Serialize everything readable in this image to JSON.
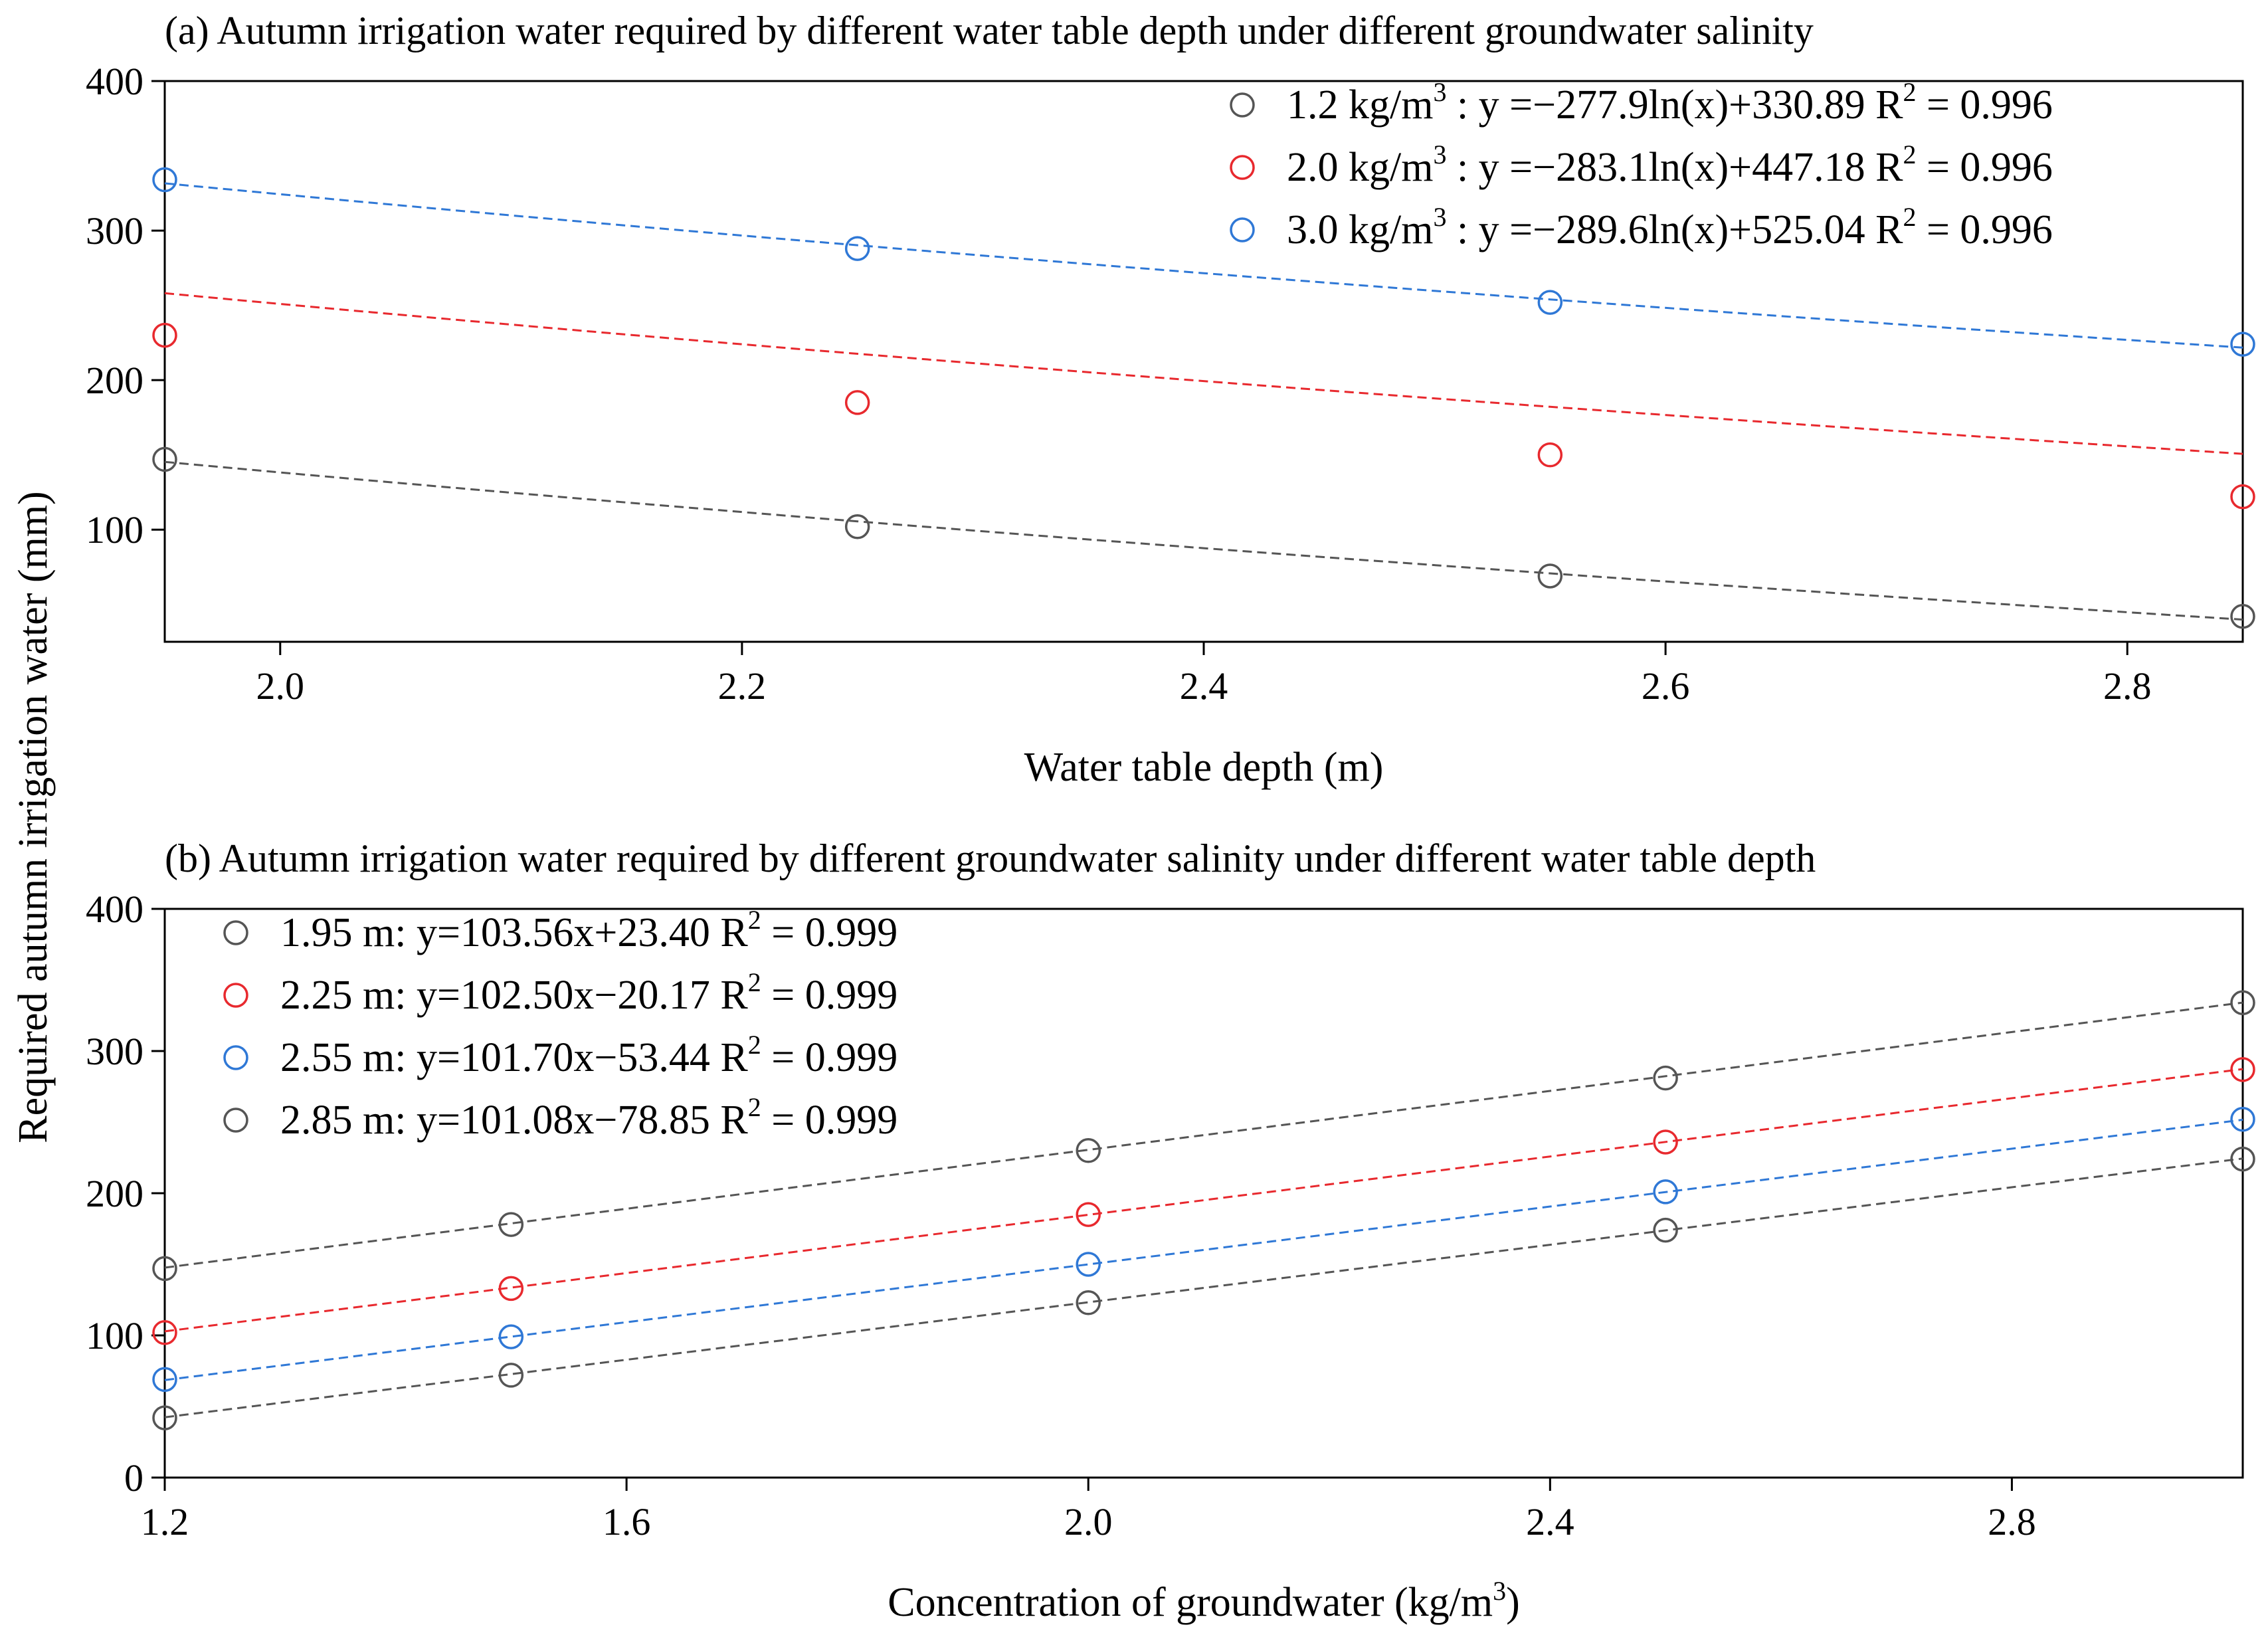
{
  "chart_data": [
    {
      "type": "scatter",
      "title": "(a) Autumn irrigation water required by different water table depth under different groundwater salinity",
      "xlabel": "Water table depth (m)",
      "ylabel": "Required autumn irrigation water (mm)",
      "xlim": [
        1.95,
        2.85
      ],
      "ylim": [
        25,
        400
      ],
      "xticks": [
        2.0,
        2.2,
        2.4,
        2.6,
        2.8
      ],
      "xtick_labels": [
        "2.0",
        "2.2",
        "2.4",
        "2.6",
        "2.8"
      ],
      "yticks": [
        100,
        200,
        300,
        400
      ],
      "ytick_labels": [
        "100",
        "200",
        "300",
        "400"
      ],
      "fit": "log",
      "legend_position": "top-right",
      "series": [
        {
          "name": "1.2 kg/m3",
          "color": "#555555",
          "x": [
            1.95,
            2.25,
            2.55,
            2.85
          ],
          "y": [
            147,
            102,
            69,
            42
          ],
          "fit_a": -277.9,
          "fit_b": 330.89,
          "legend": {
            "prefix": "1.2 kg/m",
            "sup": "3",
            "eq": " : y =−277.9ln(x)+330.89  R",
            "r2sup": "2",
            "r2": " = 0.996"
          }
        },
        {
          "name": "2.0 kg/m3",
          "color": "#e8292e",
          "x": [
            1.95,
            2.25,
            2.55,
            2.85
          ],
          "y": [
            230,
            185,
            150,
            122
          ],
          "fit_a": -283.1,
          "fit_b": 447.18,
          "legend": {
            "prefix": "2.0 kg/m",
            "sup": "3",
            "eq": " : y =−283.1ln(x)+447.18  R",
            "r2sup": "2",
            "r2": " = 0.996"
          }
        },
        {
          "name": "3.0 kg/m3",
          "color": "#2f78d6",
          "x": [
            1.95,
            2.25,
            2.55,
            2.85
          ],
          "y": [
            334,
            288,
            252,
            224
          ],
          "fit_a": -289.6,
          "fit_b": 525.04,
          "legend": {
            "prefix": "3.0 kg/m",
            "sup": "3",
            "eq": " : y =−289.6ln(x)+525.04  R",
            "r2sup": "2",
            "r2": " = 0.996"
          }
        }
      ]
    },
    {
      "type": "scatter",
      "title": "(b) Autumn irrigation water required by different groundwater salinity under different water table depth",
      "xlabel_main": "Concentration of groundwater (kg/m",
      "xlabel_sup": "3",
      "xlabel_end": ")",
      "ylabel": "Required autumn irrigation water (mm)",
      "xlim": [
        1.2,
        3.0
      ],
      "ylim": [
        0,
        400
      ],
      "xticks": [
        1.2,
        1.6,
        2.0,
        2.4,
        2.8
      ],
      "xtick_labels": [
        "1.2",
        "1.6",
        "2.0",
        "2.4",
        "2.8"
      ],
      "yticks": [
        0,
        100,
        200,
        300,
        400
      ],
      "ytick_labels": [
        "0",
        "100",
        "200",
        "300",
        "400"
      ],
      "fit": "linear",
      "legend_position": "top-left",
      "series": [
        {
          "name": "1.95 m",
          "color": "#555555",
          "x": [
            1.2,
            1.5,
            2.0,
            2.5,
            3.0
          ],
          "y": [
            147,
            178,
            230,
            281,
            334
          ],
          "fit_a": 103.56,
          "fit_b": 23.4,
          "legend": {
            "prefix": "1.95 m: y=103.56x+23.40 R",
            "r2sup": "2",
            "r2": " = 0.999"
          }
        },
        {
          "name": "2.25 m",
          "color": "#e8292e",
          "x": [
            1.2,
            1.5,
            2.0,
            2.5,
            3.0
          ],
          "y": [
            102,
            133,
            185,
            236,
            287
          ],
          "fit_a": 102.5,
          "fit_b": -20.17,
          "legend": {
            "prefix": "2.25 m: y=102.50x−20.17  R",
            "r2sup": "2",
            "r2": " = 0.999"
          }
        },
        {
          "name": "2.55 m",
          "color": "#2f78d6",
          "x": [
            1.2,
            1.5,
            2.0,
            2.5,
            3.0
          ],
          "y": [
            69,
            99,
            150,
            201,
            252
          ],
          "fit_a": 101.7,
          "fit_b": -53.44,
          "legend": {
            "prefix": "2.55 m: y=101.70x−53.44  R",
            "r2sup": "2",
            "r2": " = 0.999"
          }
        },
        {
          "name": "2.85 m",
          "color": "#555555",
          "x": [
            1.2,
            1.5,
            2.0,
            2.5,
            3.0
          ],
          "y": [
            42,
            72,
            123,
            174,
            224
          ],
          "fit_a": 101.08,
          "fit_b": -78.85,
          "legend": {
            "prefix": "2.85 m: y=101.08x−78.85  R",
            "r2sup": "2",
            "r2": " = 0.999"
          }
        }
      ]
    }
  ]
}
